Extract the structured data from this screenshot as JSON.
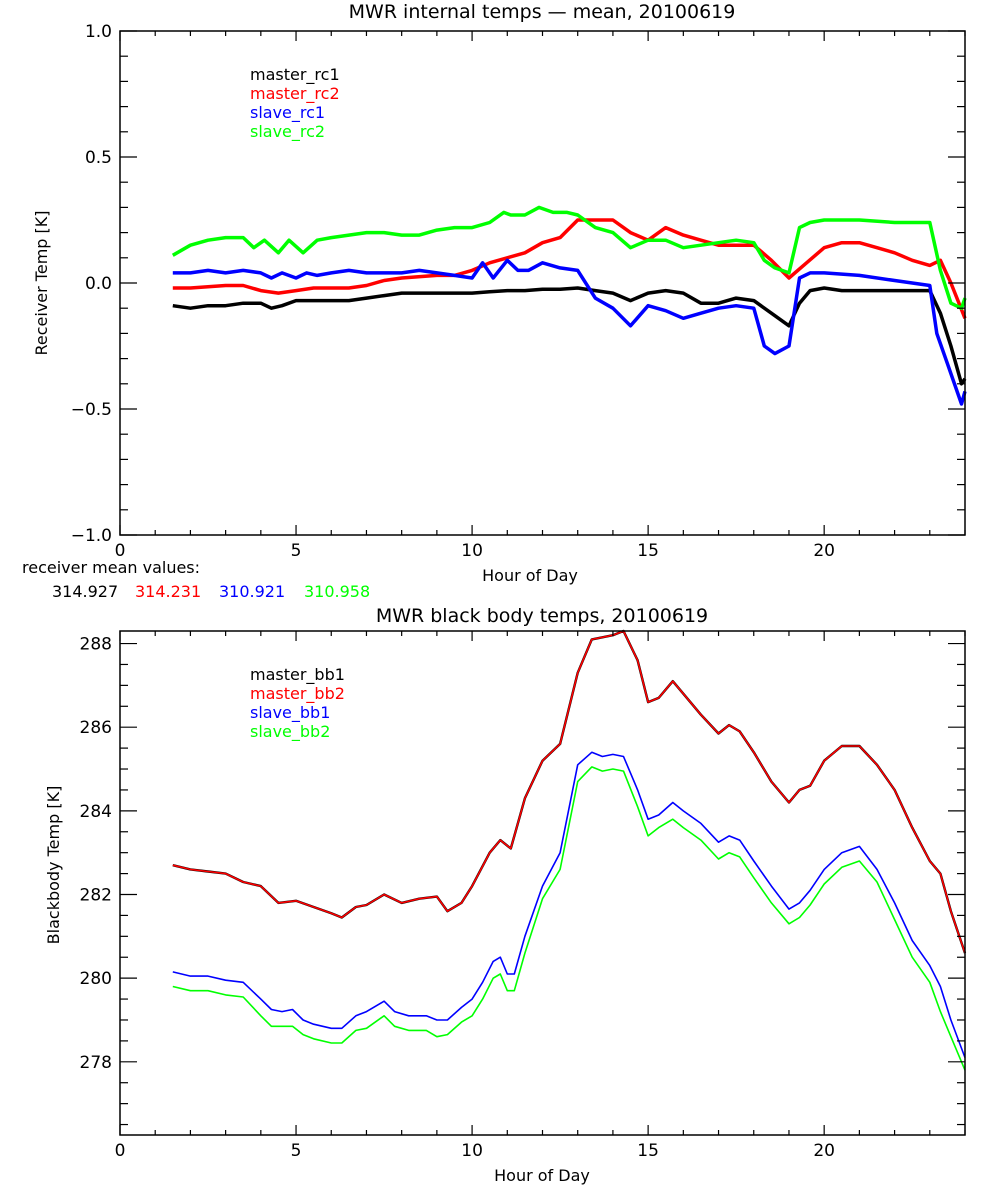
{
  "chart_data": [
    {
      "type": "line",
      "title": "MWR internal temps — mean, 20100619",
      "xlabel": "Hour of Day",
      "ylabel": "Receiver Temp [K]",
      "xlim": [
        0,
        24
      ],
      "ylim": [
        -1.0,
        1.0
      ],
      "xticks": [
        0,
        5,
        10,
        15,
        20
      ],
      "xtick_labels": [
        "0",
        "5",
        "10",
        "15",
        "20"
      ],
      "yticks": [
        1.0,
        0.5,
        0.0,
        -0.5,
        -1.0
      ],
      "ytick_labels": [
        "1.0",
        "0.5",
        "0.0",
        "−0.5",
        "−1.0"
      ],
      "grid": false,
      "legend_position": "top-left",
      "mean_values_label": "receiver mean values:",
      "mean_values": [
        {
          "value": "314.927",
          "color": "#000000"
        },
        {
          "value": "314.231",
          "color": "#ff0000"
        },
        {
          "value": "310.921",
          "color": "#0000ff"
        },
        {
          "value": "310.958",
          "color": "#00ff00"
        }
      ],
      "series": [
        {
          "name": "master_rc1",
          "color": "#000000",
          "x": [
            1.5,
            2.0,
            2.5,
            3.0,
            3.5,
            4.0,
            4.3,
            4.6,
            5.0,
            5.5,
            6.0,
            6.5,
            7.0,
            7.5,
            8.0,
            8.5,
            9.0,
            9.5,
            10.0,
            10.5,
            11.0,
            11.5,
            12.0,
            12.5,
            13.0,
            13.5,
            14.0,
            14.5,
            15.0,
            15.5,
            16.0,
            16.5,
            17.0,
            17.5,
            18.0,
            18.5,
            19.0,
            19.3,
            19.6,
            20.0,
            20.5,
            21.0,
            22.0,
            23.0,
            23.3,
            23.6,
            23.9,
            24.0
          ],
          "y": [
            -0.09,
            -0.1,
            -0.09,
            -0.09,
            -0.08,
            -0.08,
            -0.1,
            -0.09,
            -0.07,
            -0.07,
            -0.07,
            -0.07,
            -0.06,
            -0.05,
            -0.04,
            -0.04,
            -0.04,
            -0.04,
            -0.04,
            -0.035,
            -0.03,
            -0.03,
            -0.025,
            -0.025,
            -0.02,
            -0.03,
            -0.04,
            -0.07,
            -0.04,
            -0.03,
            -0.04,
            -0.08,
            -0.08,
            -0.06,
            -0.07,
            -0.12,
            -0.17,
            -0.08,
            -0.03,
            -0.02,
            -0.03,
            -0.03,
            -0.03,
            -0.03,
            -0.12,
            -0.25,
            -0.4,
            -0.38
          ]
        },
        {
          "name": "master_rc2",
          "color": "#ff0000",
          "x": [
            1.5,
            2.0,
            3.0,
            3.5,
            4.0,
            4.5,
            5.0,
            5.5,
            6.0,
            6.5,
            7.0,
            7.5,
            8.0,
            9.0,
            9.5,
            10.0,
            10.5,
            11.0,
            11.5,
            12.0,
            12.5,
            13.0,
            13.5,
            14.0,
            14.5,
            15.0,
            15.5,
            16.0,
            16.5,
            17.0,
            17.5,
            18.0,
            18.5,
            19.0,
            19.5,
            20.0,
            20.5,
            21.0,
            21.5,
            22.0,
            22.5,
            23.0,
            23.3,
            23.6,
            24.0
          ],
          "y": [
            -0.02,
            -0.02,
            -0.01,
            -0.01,
            -0.03,
            -0.04,
            -0.03,
            -0.02,
            -0.02,
            -0.02,
            -0.01,
            0.01,
            0.02,
            0.03,
            0.03,
            0.05,
            0.08,
            0.1,
            0.12,
            0.16,
            0.18,
            0.25,
            0.25,
            0.25,
            0.2,
            0.17,
            0.22,
            0.19,
            0.17,
            0.15,
            0.15,
            0.15,
            0.09,
            0.02,
            0.08,
            0.14,
            0.16,
            0.16,
            0.14,
            0.12,
            0.09,
            0.07,
            0.09,
            0.0,
            -0.14
          ]
        },
        {
          "name": "slave_rc1",
          "color": "#0000ff",
          "x": [
            1.5,
            2.0,
            2.5,
            3.0,
            3.5,
            4.0,
            4.3,
            4.6,
            5.0,
            5.3,
            5.6,
            6.0,
            6.5,
            7.0,
            7.5,
            8.0,
            8.5,
            9.0,
            9.5,
            10.0,
            10.3,
            10.6,
            11.0,
            11.3,
            11.6,
            12.0,
            12.5,
            13.0,
            13.5,
            14.0,
            14.5,
            15.0,
            15.5,
            16.0,
            16.5,
            17.0,
            17.5,
            18.0,
            18.3,
            18.6,
            19.0,
            19.3,
            19.6,
            20.0,
            21.0,
            22.0,
            23.0,
            23.2,
            23.5,
            23.9,
            24.0
          ],
          "y": [
            0.04,
            0.04,
            0.05,
            0.04,
            0.05,
            0.04,
            0.02,
            0.04,
            0.02,
            0.04,
            0.03,
            0.04,
            0.05,
            0.04,
            0.04,
            0.04,
            0.05,
            0.04,
            0.03,
            0.02,
            0.08,
            0.02,
            0.09,
            0.05,
            0.05,
            0.08,
            0.06,
            0.05,
            -0.06,
            -0.1,
            -0.17,
            -0.09,
            -0.11,
            -0.14,
            -0.12,
            -0.1,
            -0.09,
            -0.1,
            -0.25,
            -0.28,
            -0.25,
            0.02,
            0.04,
            0.04,
            0.03,
            0.01,
            -0.01,
            -0.2,
            -0.32,
            -0.48,
            -0.43
          ]
        },
        {
          "name": "slave_rc2",
          "color": "#00ff00",
          "x": [
            1.5,
            2.0,
            2.5,
            3.0,
            3.5,
            3.8,
            4.1,
            4.5,
            4.8,
            5.2,
            5.6,
            6.0,
            6.5,
            7.0,
            7.5,
            8.0,
            8.5,
            9.0,
            9.5,
            10.0,
            10.5,
            10.9,
            11.1,
            11.5,
            11.9,
            12.3,
            12.7,
            13.0,
            13.5,
            14.0,
            14.5,
            15.0,
            15.5,
            16.0,
            16.5,
            17.0,
            17.5,
            18.0,
            18.3,
            18.6,
            19.0,
            19.3,
            19.6,
            20.0,
            21.0,
            22.0,
            23.0,
            23.3,
            23.6,
            23.9,
            24.0
          ],
          "y": [
            0.11,
            0.15,
            0.17,
            0.18,
            0.18,
            0.14,
            0.17,
            0.12,
            0.17,
            0.12,
            0.17,
            0.18,
            0.19,
            0.2,
            0.2,
            0.19,
            0.19,
            0.21,
            0.22,
            0.22,
            0.24,
            0.28,
            0.27,
            0.27,
            0.3,
            0.28,
            0.28,
            0.27,
            0.22,
            0.2,
            0.14,
            0.17,
            0.17,
            0.14,
            0.15,
            0.16,
            0.17,
            0.16,
            0.09,
            0.06,
            0.04,
            0.22,
            0.24,
            0.25,
            0.25,
            0.24,
            0.24,
            0.05,
            -0.08,
            -0.1,
            -0.06
          ]
        }
      ]
    },
    {
      "type": "line",
      "title": "MWR black body temps, 20100619",
      "xlabel": "Hour of Day",
      "ylabel": "Blackbody Temp [K]",
      "xlim": [
        0,
        24
      ],
      "ylim": [
        276.25,
        288.3
      ],
      "xticks": [
        0,
        5,
        10,
        15,
        20
      ],
      "xtick_labels": [
        "0",
        "5",
        "10",
        "15",
        "20"
      ],
      "yticks": [
        288,
        286,
        284,
        282,
        280,
        278
      ],
      "ytick_labels": [
        "288",
        "286",
        "284",
        "282",
        "280",
        "278"
      ],
      "grid": false,
      "legend_position": "top-left",
      "series": [
        {
          "name": "master_bb1",
          "color": "#000000",
          "x": [
            1.5,
            2.0,
            2.5,
            3.0,
            3.5,
            4.0,
            4.5,
            5.0,
            5.5,
            6.0,
            6.3,
            6.7,
            7.0,
            7.5,
            8.0,
            8.5,
            9.0,
            9.3,
            9.7,
            10.0,
            10.5,
            10.8,
            11.1,
            11.5,
            12.0,
            12.5,
            13.0,
            13.4,
            13.7,
            14.0,
            14.3,
            14.7,
            15.0,
            15.3,
            15.7,
            16.0,
            16.5,
            17.0,
            17.3,
            17.6,
            18.0,
            18.5,
            19.0,
            19.3,
            19.6,
            20.0,
            20.5,
            21.0,
            21.5,
            22.0,
            22.5,
            23.0,
            23.3,
            23.6,
            24.0
          ],
          "y": [
            282.7,
            282.6,
            282.55,
            282.5,
            282.3,
            282.2,
            281.8,
            281.85,
            281.7,
            281.55,
            281.45,
            281.7,
            281.75,
            282.0,
            281.8,
            281.9,
            281.95,
            281.6,
            281.8,
            282.2,
            283.0,
            283.3,
            283.1,
            284.3,
            285.2,
            285.6,
            287.3,
            288.1,
            288.15,
            288.2,
            288.3,
            287.6,
            286.6,
            286.7,
            287.1,
            286.8,
            286.3,
            285.85,
            286.05,
            285.9,
            285.4,
            284.7,
            284.2,
            284.5,
            284.6,
            285.2,
            285.55,
            285.55,
            285.1,
            284.5,
            283.6,
            282.8,
            282.5,
            281.6,
            280.6
          ]
        },
        {
          "name": "master_bb2",
          "color": "#ff0000",
          "x": [
            1.5,
            2.0,
            2.5,
            3.0,
            3.5,
            4.0,
            4.5,
            5.0,
            5.5,
            6.0,
            6.3,
            6.7,
            7.0,
            7.5,
            8.0,
            8.5,
            9.0,
            9.3,
            9.7,
            10.0,
            10.5,
            10.8,
            11.1,
            11.5,
            12.0,
            12.5,
            13.0,
            13.4,
            13.7,
            14.0,
            14.3,
            14.7,
            15.0,
            15.3,
            15.7,
            16.0,
            16.5,
            17.0,
            17.3,
            17.6,
            18.0,
            18.5,
            19.0,
            19.3,
            19.6,
            20.0,
            20.5,
            21.0,
            21.5,
            22.0,
            22.5,
            23.0,
            23.3,
            23.6,
            24.0
          ],
          "y": [
            282.7,
            282.6,
            282.55,
            282.5,
            282.3,
            282.2,
            281.8,
            281.85,
            281.7,
            281.55,
            281.45,
            281.7,
            281.75,
            282.0,
            281.8,
            281.9,
            281.95,
            281.6,
            281.8,
            282.2,
            283.0,
            283.3,
            283.1,
            284.3,
            285.2,
            285.6,
            287.3,
            288.1,
            288.15,
            288.2,
            288.3,
            287.6,
            286.6,
            286.7,
            287.1,
            286.8,
            286.3,
            285.85,
            286.05,
            285.9,
            285.4,
            284.7,
            284.2,
            284.5,
            284.6,
            285.2,
            285.55,
            285.55,
            285.1,
            284.5,
            283.6,
            282.8,
            282.5,
            281.6,
            280.6
          ]
        },
        {
          "name": "slave_bb1",
          "color": "#0000ff",
          "x": [
            1.5,
            2.0,
            2.5,
            3.0,
            3.5,
            4.0,
            4.3,
            4.6,
            4.9,
            5.2,
            5.5,
            6.0,
            6.3,
            6.7,
            7.0,
            7.5,
            7.8,
            8.2,
            8.7,
            9.0,
            9.3,
            9.7,
            10.0,
            10.3,
            10.6,
            10.8,
            11.0,
            11.2,
            11.5,
            12.0,
            12.5,
            13.0,
            13.4,
            13.7,
            14.0,
            14.3,
            14.7,
            15.0,
            15.3,
            15.7,
            16.0,
            16.5,
            17.0,
            17.3,
            17.6,
            18.0,
            18.5,
            19.0,
            19.3,
            19.6,
            20.0,
            20.5,
            21.0,
            21.5,
            22.0,
            22.5,
            23.0,
            23.3,
            23.6,
            24.0
          ],
          "y": [
            280.15,
            280.05,
            280.05,
            279.95,
            279.9,
            279.5,
            279.25,
            279.2,
            279.25,
            279.0,
            278.9,
            278.8,
            278.8,
            279.1,
            279.2,
            279.45,
            279.2,
            279.1,
            279.1,
            279.0,
            279.0,
            279.3,
            279.5,
            279.9,
            280.4,
            280.5,
            280.1,
            280.1,
            281.0,
            282.2,
            283.0,
            285.1,
            285.4,
            285.3,
            285.35,
            285.3,
            284.5,
            283.8,
            283.9,
            284.2,
            284.0,
            283.7,
            283.25,
            283.4,
            283.3,
            282.8,
            282.2,
            281.65,
            281.8,
            282.1,
            282.6,
            283.0,
            283.15,
            282.6,
            281.8,
            280.9,
            280.3,
            279.8,
            279.0,
            278.1
          ]
        },
        {
          "name": "slave_bb2",
          "color": "#00ff00",
          "x": [
            1.5,
            2.0,
            2.5,
            3.0,
            3.5,
            4.0,
            4.3,
            4.6,
            4.9,
            5.2,
            5.5,
            6.0,
            6.3,
            6.7,
            7.0,
            7.5,
            7.8,
            8.2,
            8.7,
            9.0,
            9.3,
            9.7,
            10.0,
            10.3,
            10.6,
            10.8,
            11.0,
            11.2,
            11.5,
            12.0,
            12.5,
            13.0,
            13.4,
            13.7,
            14.0,
            14.3,
            14.7,
            15.0,
            15.3,
            15.7,
            16.0,
            16.5,
            17.0,
            17.3,
            17.6,
            18.0,
            18.5,
            19.0,
            19.3,
            19.6,
            20.0,
            20.5,
            21.0,
            21.5,
            22.0,
            22.5,
            23.0,
            23.3,
            23.6,
            24.0
          ],
          "y": [
            279.8,
            279.7,
            279.7,
            279.6,
            279.55,
            279.1,
            278.85,
            278.85,
            278.85,
            278.65,
            278.55,
            278.45,
            278.45,
            278.75,
            278.8,
            279.1,
            278.85,
            278.75,
            278.75,
            278.6,
            278.65,
            278.95,
            279.1,
            279.5,
            280.0,
            280.1,
            279.7,
            279.7,
            280.6,
            281.9,
            282.6,
            284.7,
            285.05,
            284.95,
            285.0,
            284.95,
            284.1,
            283.4,
            283.6,
            283.8,
            283.6,
            283.3,
            282.85,
            283.0,
            282.9,
            282.4,
            281.8,
            281.3,
            281.45,
            281.75,
            282.25,
            282.65,
            282.8,
            282.3,
            281.4,
            280.5,
            279.9,
            279.2,
            278.6,
            277.8
          ]
        }
      ]
    }
  ]
}
